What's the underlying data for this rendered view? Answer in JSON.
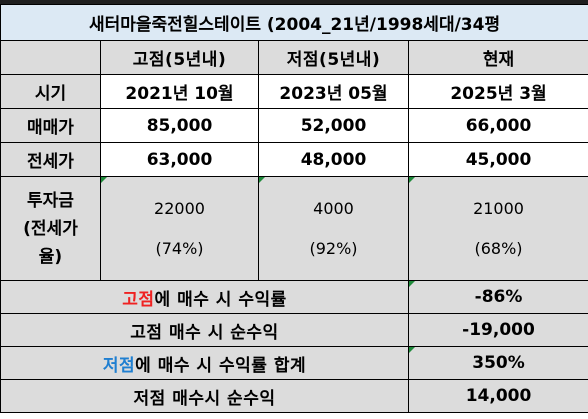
{
  "title": "새터마을죽전힐스테이트 (2004_21년/1998세대/34평",
  "headers": {
    "blank": "",
    "low": "고점(5년내)",
    "high": "저점(5년내)",
    "now": "현재"
  },
  "rows": {
    "period": {
      "label": "시기",
      "low": "2021년 10월",
      "high": "2023년 05월",
      "now": "2025년 3월"
    },
    "sale": {
      "label": "매매가",
      "low": "85,000",
      "high": "52,000",
      "now": "66,000"
    },
    "jeonse": {
      "label": "전세가",
      "low": "63,000",
      "high": "48,000",
      "now": "45,000"
    },
    "invest": {
      "label_1": "투자금",
      "label_2": "(전세가",
      "label_3": "율)",
      "low_amount": "22000",
      "low_ratio": "(74%)",
      "high_amount": "4000",
      "high_ratio": "(92%)",
      "now_amount": "21000",
      "now_ratio": "(68%)"
    }
  },
  "summary": {
    "peak_yield": {
      "label_highlight": "고점",
      "label_rest": "에 매수 시 수익률",
      "value": "-86%"
    },
    "peak_net": {
      "label": "고점 매수 시 순수익",
      "value": "-19,000"
    },
    "trough_yield": {
      "label_highlight": "저점",
      "label_rest": "에 매수 시 수익률 합계",
      "value": "350%"
    },
    "trough_net": {
      "label": "저점 매수시 순수익",
      "value": "14,000"
    }
  },
  "colors": {
    "title_bg": "#dce9f4",
    "title_text": "#1f6fb8",
    "red": "#ef2222",
    "blue": "#1f7fd1",
    "gray": "#dcdcdc"
  }
}
